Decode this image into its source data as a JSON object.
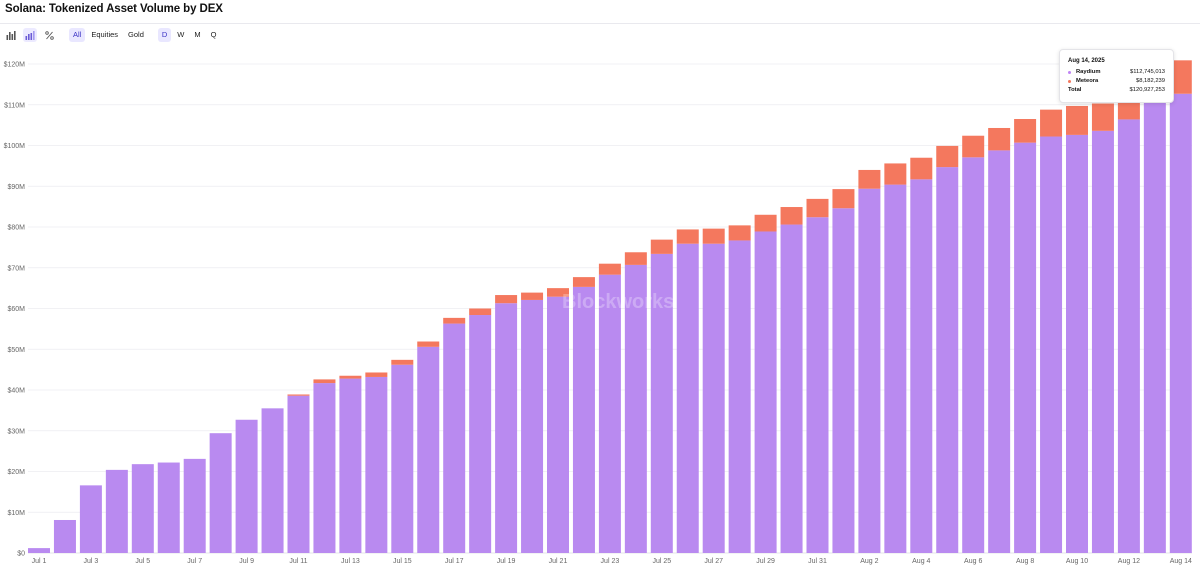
{
  "header": {
    "title": "Solana: Tokenized Asset Volume by DEX"
  },
  "toolbar": {
    "icons": [
      "bar-chart-icon",
      "stacked-bar-icon",
      "percent-icon"
    ],
    "filters": [
      "All",
      "Equities",
      "Gold"
    ],
    "intervals": [
      "D",
      "W",
      "M",
      "Q"
    ],
    "active_filter": "All",
    "active_interval": "D"
  },
  "watermark": {
    "text": "Blockworks"
  },
  "tooltip": {
    "date": "Aug 14, 2025",
    "rows": [
      {
        "label": "Raydium",
        "value": "$112,745,013",
        "color": "#c084f5"
      },
      {
        "label": "Meteora",
        "value": "$8,182,239",
        "color": "#f4785e"
      }
    ],
    "total_label": "Total",
    "total_value": "$120,927,253"
  },
  "chart_data": {
    "type": "bar",
    "stacked": true,
    "categories": [
      "Jul 1",
      "Jul 2",
      "Jul 3",
      "Jul 4",
      "Jul 5",
      "Jul 6",
      "Jul 7",
      "Jul 8",
      "Jul 9",
      "Jul 10",
      "Jul 11",
      "Jul 12",
      "Jul 13",
      "Jul 14",
      "Jul 15",
      "Jul 16",
      "Jul 17",
      "Jul 18",
      "Jul 19",
      "Jul 20",
      "Jul 21",
      "Jul 22",
      "Jul 23",
      "Jul 24",
      "Jul 25",
      "Jul 26",
      "Jul 27",
      "Jul 28",
      "Jul 29",
      "Jul 30",
      "Jul 31",
      "Aug 1",
      "Aug 2",
      "Aug 3",
      "Aug 4",
      "Aug 5",
      "Aug 6",
      "Aug 7",
      "Aug 8",
      "Aug 9",
      "Aug 10",
      "Aug 11",
      "Aug 12",
      "Aug 13",
      "Aug 14"
    ],
    "series": [
      {
        "name": "Raydium",
        "color": "#b98af0",
        "values": [
          1.2,
          8.1,
          16.6,
          20.4,
          21.8,
          22.2,
          23.1,
          29.4,
          32.7,
          35.5,
          38.6,
          41.7,
          42.8,
          43.2,
          46.2,
          50.6,
          56.3,
          58.4,
          61.3,
          62.1,
          62.9,
          65.3,
          68.3,
          70.7,
          73.4,
          75.9,
          75.9,
          76.7,
          78.9,
          80.6,
          82.4,
          84.6,
          89.4,
          90.4,
          91.7,
          94.7,
          97.1,
          98.8,
          100.7,
          102.2,
          102.6,
          103.6,
          106.4,
          110.5,
          112.7
        ]
      },
      {
        "name": "Meteora",
        "color": "#f4785e",
        "values": [
          0,
          0,
          0,
          0,
          0,
          0,
          0,
          0,
          0,
          0,
          0.3,
          0.9,
          0.7,
          1.1,
          1.2,
          1.3,
          1.4,
          1.6,
          2.0,
          1.8,
          2.1,
          2.4,
          2.7,
          3.1,
          3.5,
          3.5,
          3.7,
          3.7,
          4.1,
          4.3,
          4.5,
          4.7,
          4.6,
          5.2,
          5.3,
          5.2,
          5.3,
          5.5,
          5.8,
          6.6,
          7.1,
          6.7,
          6.7,
          7.1,
          8.2
        ]
      }
    ],
    "title": "Solana: Tokenized Asset Volume by DEX",
    "xlabel": "",
    "ylabel": "",
    "yticks": [
      "$0",
      "$10M",
      "$20M",
      "$30M",
      "$40M",
      "$50M",
      "$60M",
      "$70M",
      "$80M",
      "$90M",
      "$100M",
      "$110M",
      "$120M"
    ],
    "ylim": [
      0,
      120
    ],
    "xtick_labels": [
      "Jul 1",
      "Jul 3",
      "Jul 5",
      "Jul 7",
      "Jul 9",
      "Jul 11",
      "Jul 13",
      "Jul 15",
      "Jul 17",
      "Jul 19",
      "Jul 21",
      "Jul 23",
      "Jul 25",
      "Jul 27",
      "Jul 29",
      "Jul 31",
      "Aug 2",
      "Aug 4",
      "Aug 6",
      "Aug 8",
      "Aug 10",
      "Aug 12",
      "Aug 14"
    ],
    "grid": true,
    "legend": "tooltip top-right"
  }
}
